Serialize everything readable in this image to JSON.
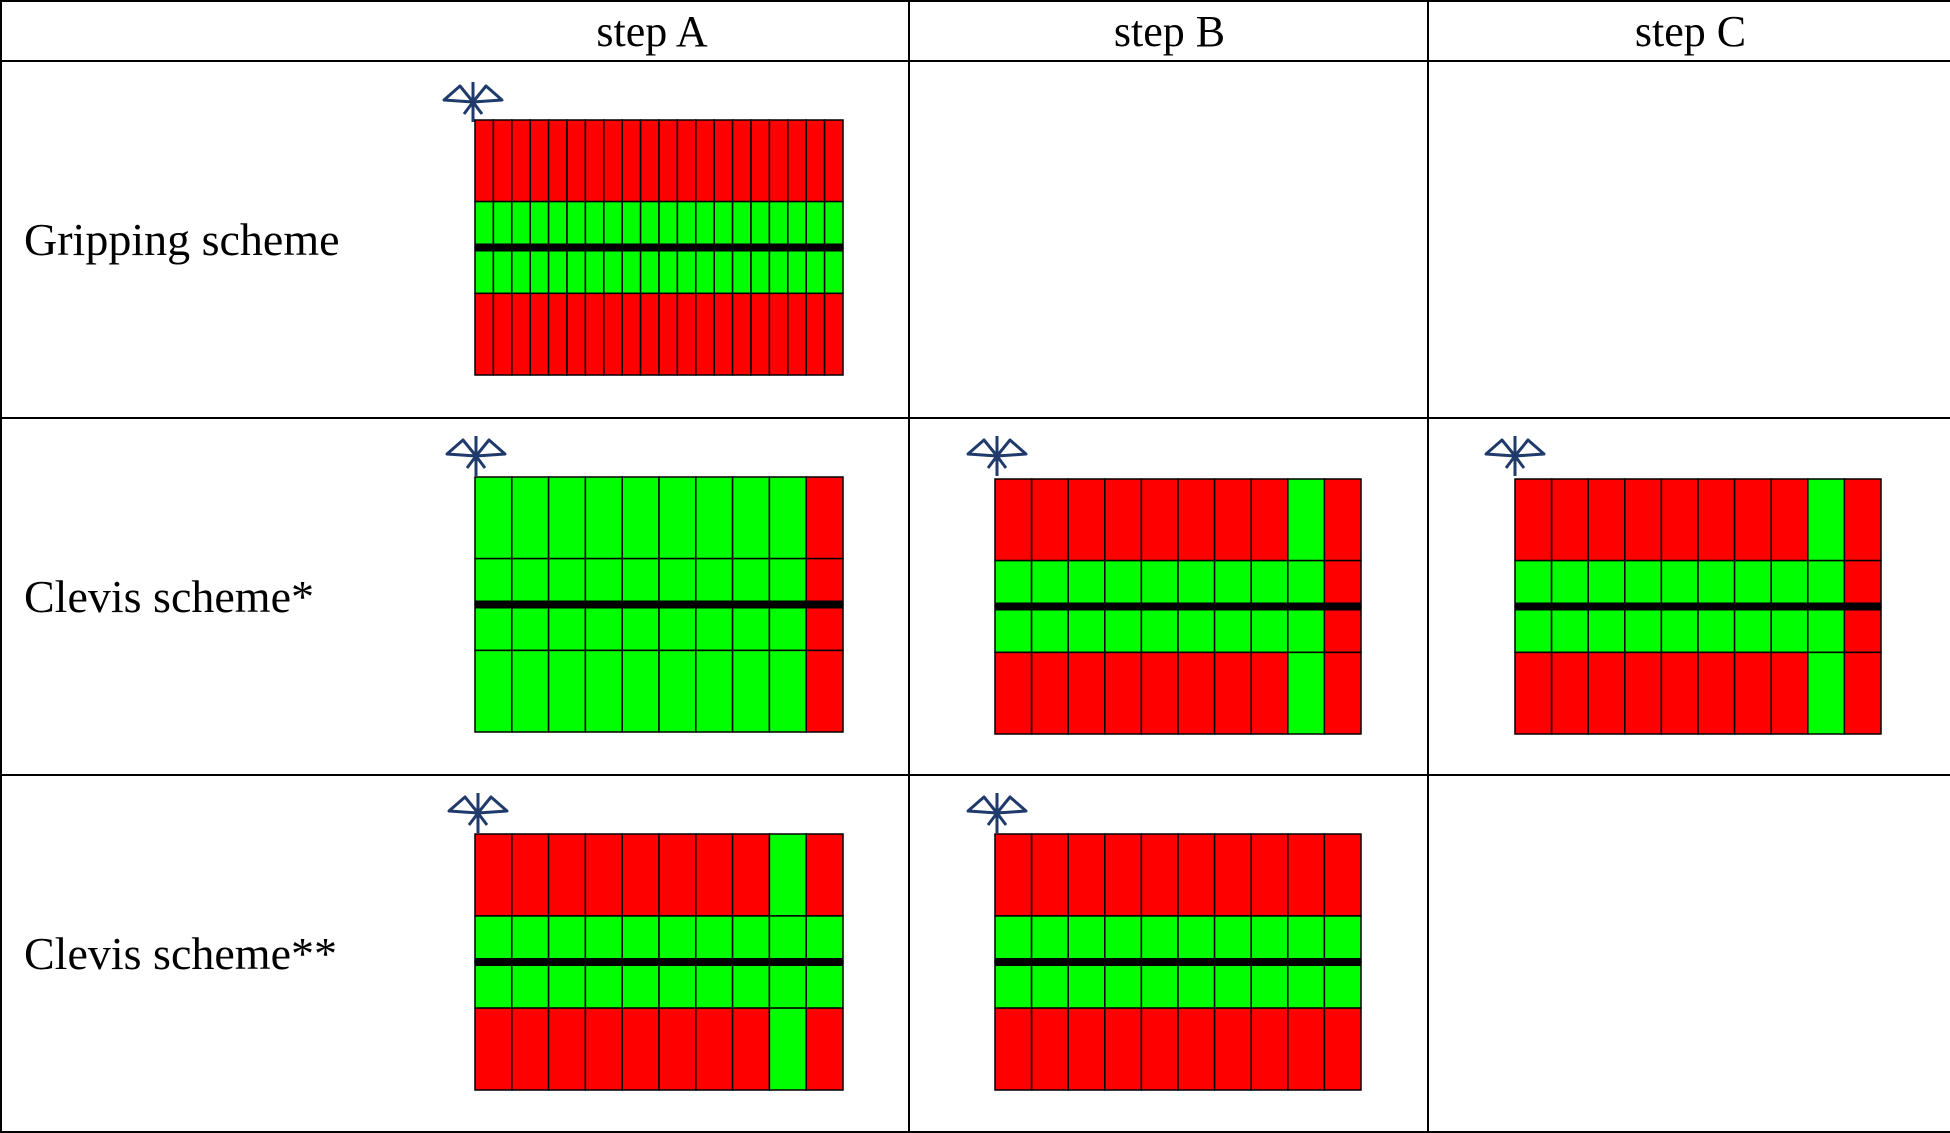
{
  "header": {
    "corner": "",
    "step_a": "step A",
    "step_b": "step B",
    "step_c": "step C"
  },
  "rows": [
    {
      "label": "Gripping scheme",
      "cells": {
        "step_a": {
          "icon": "clamp-symbol-icon",
          "columns": 20,
          "bands": [
            "red",
            "green",
            "green",
            "red"
          ],
          "center_line": true,
          "green_columns": []
        },
        "step_b": null,
        "step_c": null
      }
    },
    {
      "label": "Clevis scheme*",
      "cells": {
        "step_a": {
          "icon": "clamp-symbol-icon",
          "columns": 10,
          "bands": [
            "green",
            "green",
            "green",
            "green"
          ],
          "center_line": true,
          "red_columns": [
            10
          ]
        },
        "step_b": {
          "icon": "clamp-symbol-icon",
          "columns": 10,
          "bands": [
            "red",
            "green",
            "green",
            "red"
          ],
          "center_line": true,
          "green_columns": [
            9
          ],
          "red_columns": [
            10
          ]
        },
        "step_c": {
          "icon": "clamp-symbol-icon",
          "columns": 10,
          "bands": [
            "red",
            "green",
            "green",
            "red"
          ],
          "center_line": true,
          "green_columns": [
            9
          ],
          "red_columns": [
            10
          ]
        }
      }
    },
    {
      "label": "Clevis scheme**",
      "cells": {
        "step_a": {
          "icon": "clamp-symbol-icon",
          "columns": 10,
          "bands": [
            "red",
            "green",
            "green",
            "red"
          ],
          "center_line": true,
          "green_columns": [
            9
          ]
        },
        "step_b": {
          "icon": "clamp-symbol-icon",
          "columns": 10,
          "bands": [
            "red",
            "green",
            "green",
            "red"
          ],
          "center_line": true,
          "green_columns": []
        },
        "step_c": null
      }
    }
  ],
  "colors": {
    "red": "#ff0000",
    "green": "#00ff00",
    "grid_line": "#000000",
    "center_line": "#000000",
    "icon": "#1f3a6b"
  }
}
